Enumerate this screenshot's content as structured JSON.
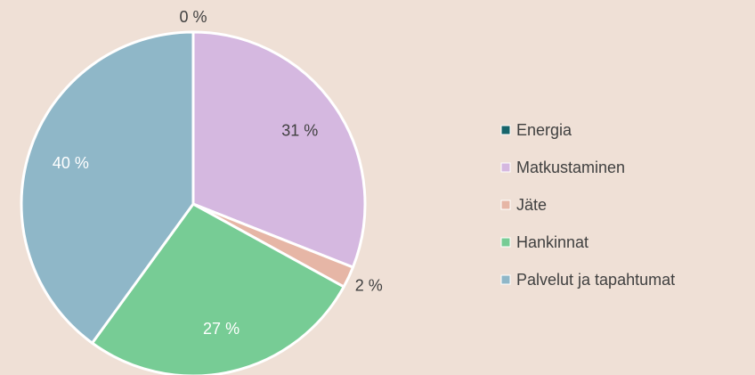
{
  "chart_data": {
    "type": "pie",
    "categories": [
      "Energia",
      "Matkustaminen",
      "Jäte",
      "Hankinnat",
      "Palvelut ja tapahtumat"
    ],
    "values": [
      0,
      31,
      2,
      27,
      40
    ],
    "value_labels": [
      "0 %",
      "31 %",
      "2 %",
      "27 %",
      "40 %"
    ],
    "colors": [
      "#17656b",
      "#d5b8e0",
      "#e6b6a6",
      "#77cc95",
      "#8fb7c8"
    ],
    "legend": "right"
  }
}
